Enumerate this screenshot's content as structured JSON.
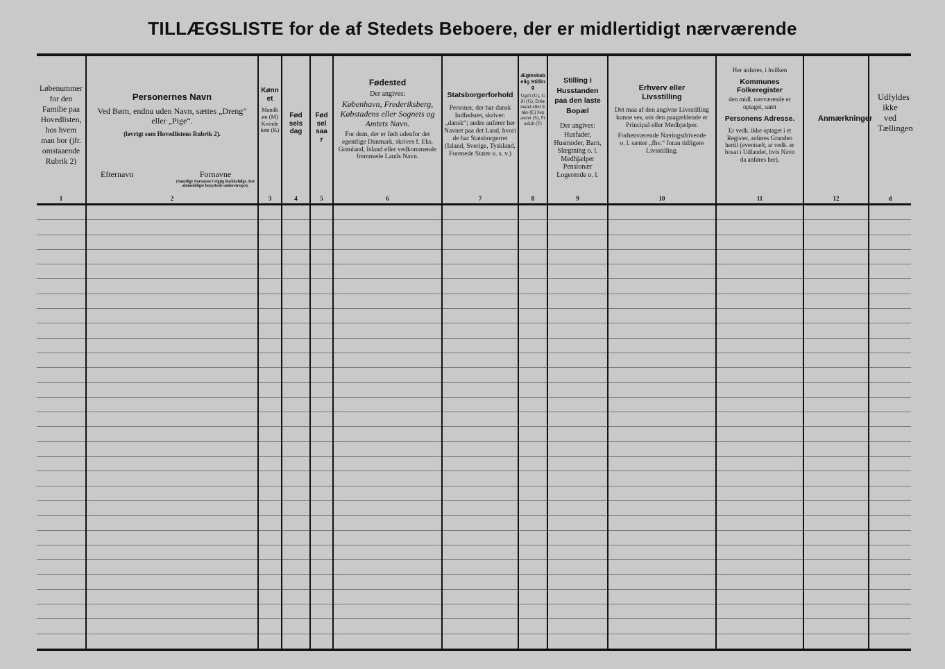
{
  "title": "TILLÆGSLISTE for de af Stedets Beboere, der er midlertidigt nærværende",
  "columns": [
    {
      "number": "1",
      "text": "Løbenummer for den Familie paa Hovedlisten, hos hvem man bor (jfr. omstaaende Rubrik 2)"
    },
    {
      "number": "2",
      "heading": "Personernes Navn",
      "text": "Ved Børn, endnu uden Navn, sættes „Dreng“ eller „Pige“.",
      "note": "(løvrigt som Hovedlistens Rubrik 2).",
      "sub_left": "Efternavn",
      "sub_right": "Fornavne",
      "sub_right_note": "(Samtlige Fornavne i rigtig Rækkefølge. Det almindeligst benyttede understreges)."
    },
    {
      "number": "3",
      "heading": "Kønnet",
      "text": "Mandkøn (M) Kvindekøn (K)"
    },
    {
      "number": "4",
      "heading": "Fødselsdag"
    },
    {
      "number": "5",
      "heading": "Fødselsaar"
    },
    {
      "number": "6",
      "heading": "Fødested",
      "text": "Der angives:",
      "italic": "København, Frederiksberg, Købstadens eller Sognets og Amtets Navn.",
      "note": "For dem, der er født udenfor det egentlige Danmark, skrives f. Eks. Grønland, Island eller vedkommende fremmede Lands Navn."
    },
    {
      "number": "7",
      "heading": "Statsborgerforhold",
      "text": "Personer, der har dansk Indfødsret, skriver: „dansk“; andre anfører her Navnet paa det Land, hvori de har Statsborgerret (Island, Sverige, Tyskland, Forenede Stater o. s. v.)"
    },
    {
      "number": "8",
      "heading": "Ægteskabelig Stilling",
      "text": "Ugift (U), Gift (G), Enkemand eller Enke (E) Separeret (S), Fraskilt (F)"
    },
    {
      "number": "9",
      "heading": "Stilling i Husstanden paa den laste Bopæl",
      "text": "Der angives:",
      "note": "Husfader, Husmoder, Barn, Slægtning o. l. Medhjælper Pensionær Logerende o. l."
    },
    {
      "number": "10",
      "heading": "Erhverv eller Livsstilling",
      "text": "Det maa af den angivne Livsstilling kunne ses, om den paagældende er Principal eller Medhjælper.",
      "note": "Forhenværende Næringsdrivende o. l. sætter „fhv.“ foran tidligere Livsstilling."
    },
    {
      "number": "11",
      "pre": "Her anføres, i hvilken",
      "heading": "Kommunes Folkeregister",
      "text": "den midl. nærværende er optaget, samt",
      "heading2": "Personens Adresse.",
      "note": "Er vedk. ikke optaget i et Register, anføres Grunden hertil (eventuelt, at vedk. er bosat i Udlandet, hvis Navn da anføres her)."
    },
    {
      "number": "12",
      "heading": "Anmærkninger"
    },
    {
      "number": "d",
      "text": "Udfyldes ikke ved Tællingen"
    }
  ],
  "row_count": 30
}
